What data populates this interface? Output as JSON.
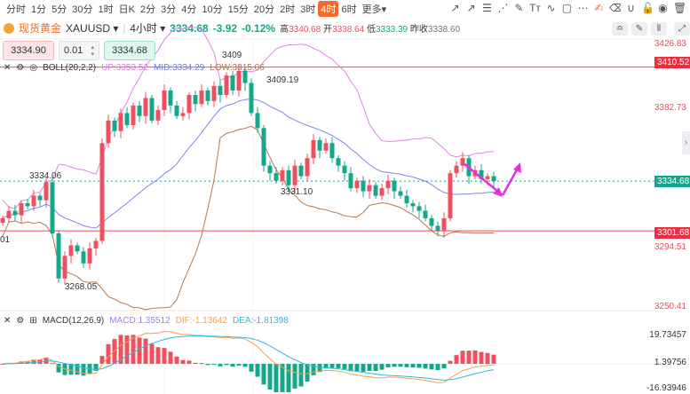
{
  "timeframes": [
    "分时",
    "1分",
    "5分",
    "30分",
    "1时",
    "日K",
    "2分",
    "3分",
    "4分",
    "10分",
    "15分",
    "20分",
    "2时",
    "3时",
    "4时",
    "6时",
    "更多▾"
  ],
  "active_timeframe": "4时",
  "tools": [
    "↗",
    "↗",
    "☰",
    "⋰",
    "✎",
    "Tт",
    "∿",
    "▢",
    "⋯",
    "✍",
    "⌫",
    "∪",
    "🔓",
    "◉",
    "🗑"
  ],
  "symbol": {
    "name": "现货黄金",
    "code": "XAUUSD ▾",
    "period": "4小时 ▾",
    "price": "3334.68",
    "change": "-3.92",
    "pct": "-0.12%",
    "high_label": "高",
    "high": "3340.68",
    "open_label": "开",
    "open": "3338.64",
    "low_label": "低",
    "low": "3333.39",
    "prev_label": "昨收",
    "prev": "3338.60"
  },
  "order": {
    "sell": "3334.90",
    "qty": "0.01",
    "buy": "3334.68"
  },
  "boll": {
    "label": "BOLL(20,2,2)",
    "up": "UP:3353.52",
    "mid": "MID:3334.29",
    "low": "LOW:3315.06"
  },
  "macd": {
    "label": "MACD(12,26,9)",
    "macd": "MACD:1.35512",
    "dif": "DIF:-1.13642",
    "dea": "DEA:-1.81398",
    "axis": [
      "19.73457",
      "1.39756",
      "-16.93946"
    ]
  },
  "price_axis": [
    "3426.83",
    "3382.73",
    "3294.51",
    "3250.41"
  ],
  "tags": {
    "top_line": "3410.52",
    "current": "3334.68",
    "bottom_line": "3301.68"
  },
  "annotations": {
    "a": "3409",
    "b": "3409.19",
    "c": "3334.06",
    "d": "3331.10",
    "e": "3268.05",
    "f": "01"
  },
  "colors": {
    "up": "#ef4f5f",
    "down": "#14a78a",
    "accent": "#f36b2c",
    "arrow": "#e62ee6"
  },
  "chart_data": {
    "type": "candlestick",
    "ylim": [
      3250.41,
      3426.83
    ],
    "closes": [
      3310,
      3315,
      3312,
      3320,
      3318,
      3325,
      3322,
      3334,
      3300,
      3270,
      3285,
      3292,
      3288,
      3280,
      3290,
      3295,
      3360,
      3375,
      3368,
      3380,
      3372,
      3385,
      3378,
      3390,
      3375,
      3382,
      3395,
      3385,
      3378,
      3380,
      3392,
      3386,
      3395,
      3388,
      3398,
      3392,
      3405,
      3395,
      3408,
      3400,
      3380,
      3370,
      3345,
      3340,
      3335,
      3342,
      3332,
      3345,
      3338,
      3350,
      3362,
      3355,
      3360,
      3350,
      3345,
      3340,
      3330,
      3335,
      3328,
      3332,
      3325,
      3330,
      3335,
      3328,
      3325,
      3320,
      3318,
      3315,
      3310,
      3305,
      3302,
      3310,
      3340,
      3345,
      3350,
      3338,
      3342,
      3336,
      3338,
      3334.68
    ]
  }
}
